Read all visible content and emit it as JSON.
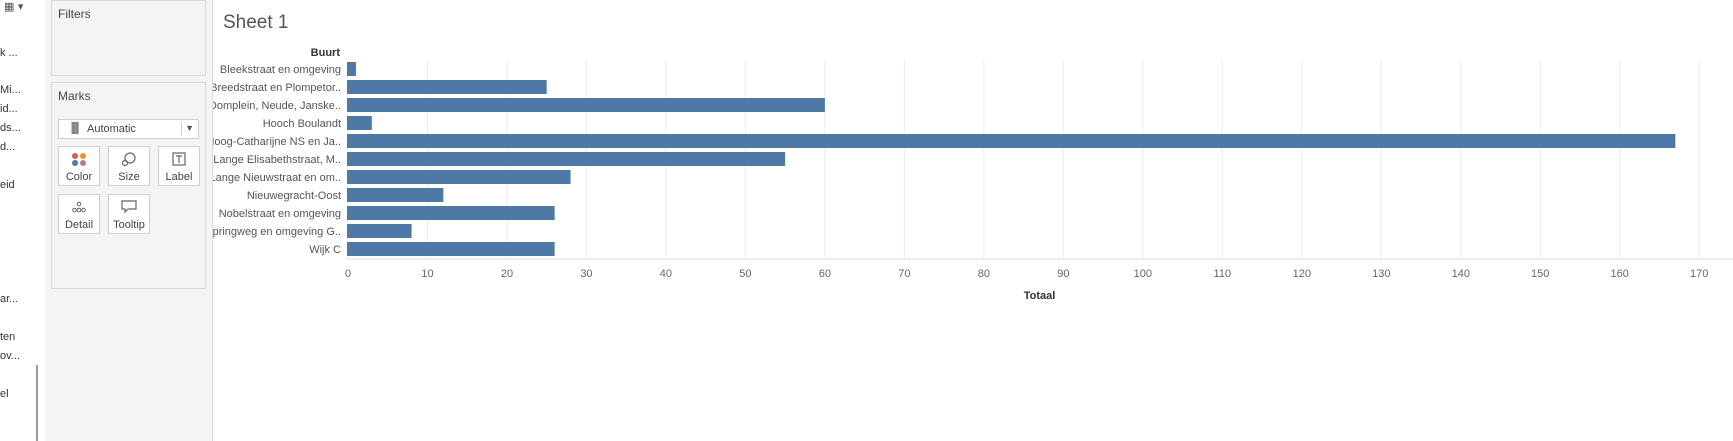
{
  "left_fragments": [
    "k ...",
    "Mi...",
    "id...",
    "ds...",
    "d...",
    "eid",
    "ar...",
    "ten",
    "ov...",
    "el"
  ],
  "filters": {
    "title": "Filters"
  },
  "marks": {
    "title": "Marks",
    "mark_type": "Automatic",
    "buttons": [
      {
        "label": "Color",
        "icon": "color-dots-icon"
      },
      {
        "label": "Size",
        "icon": "size-icon"
      },
      {
        "label": "Label",
        "icon": "label-icon"
      },
      {
        "label": "Detail",
        "icon": "detail-icon"
      },
      {
        "label": "Tooltip",
        "icon": "tooltip-icon"
      }
    ]
  },
  "sheet": {
    "title": "Sheet 1"
  },
  "colors": {
    "bar": "#4e79a7",
    "grid": "#ececec"
  },
  "chart_data": {
    "type": "bar",
    "orientation": "horizontal",
    "row_header": "Buurt",
    "xlabel": "Totaal",
    "categories": [
      "Bleekstraat en omgeving",
      "Breedstraat en Plompetor..",
      "Domplein, Neude,  Janske..",
      "Hooch Boulandt",
      "Hoog-Catharijne NS en Ja..",
      "Lange Elisabethstraat, M..",
      "Lange Nieuwstraat en om..",
      "Nieuwegracht-Oost",
      "Nobelstraat en omgeving",
      "Springweg en omgeving G..",
      "Wijk C"
    ],
    "values": [
      1,
      25,
      60,
      3,
      167,
      55,
      28,
      12,
      26,
      8,
      26
    ],
    "xlim": [
      0,
      174
    ],
    "xticks": [
      0,
      10,
      20,
      30,
      40,
      50,
      60,
      70,
      80,
      90,
      100,
      110,
      120,
      130,
      140,
      150,
      160,
      170
    ],
    "grid": true
  }
}
